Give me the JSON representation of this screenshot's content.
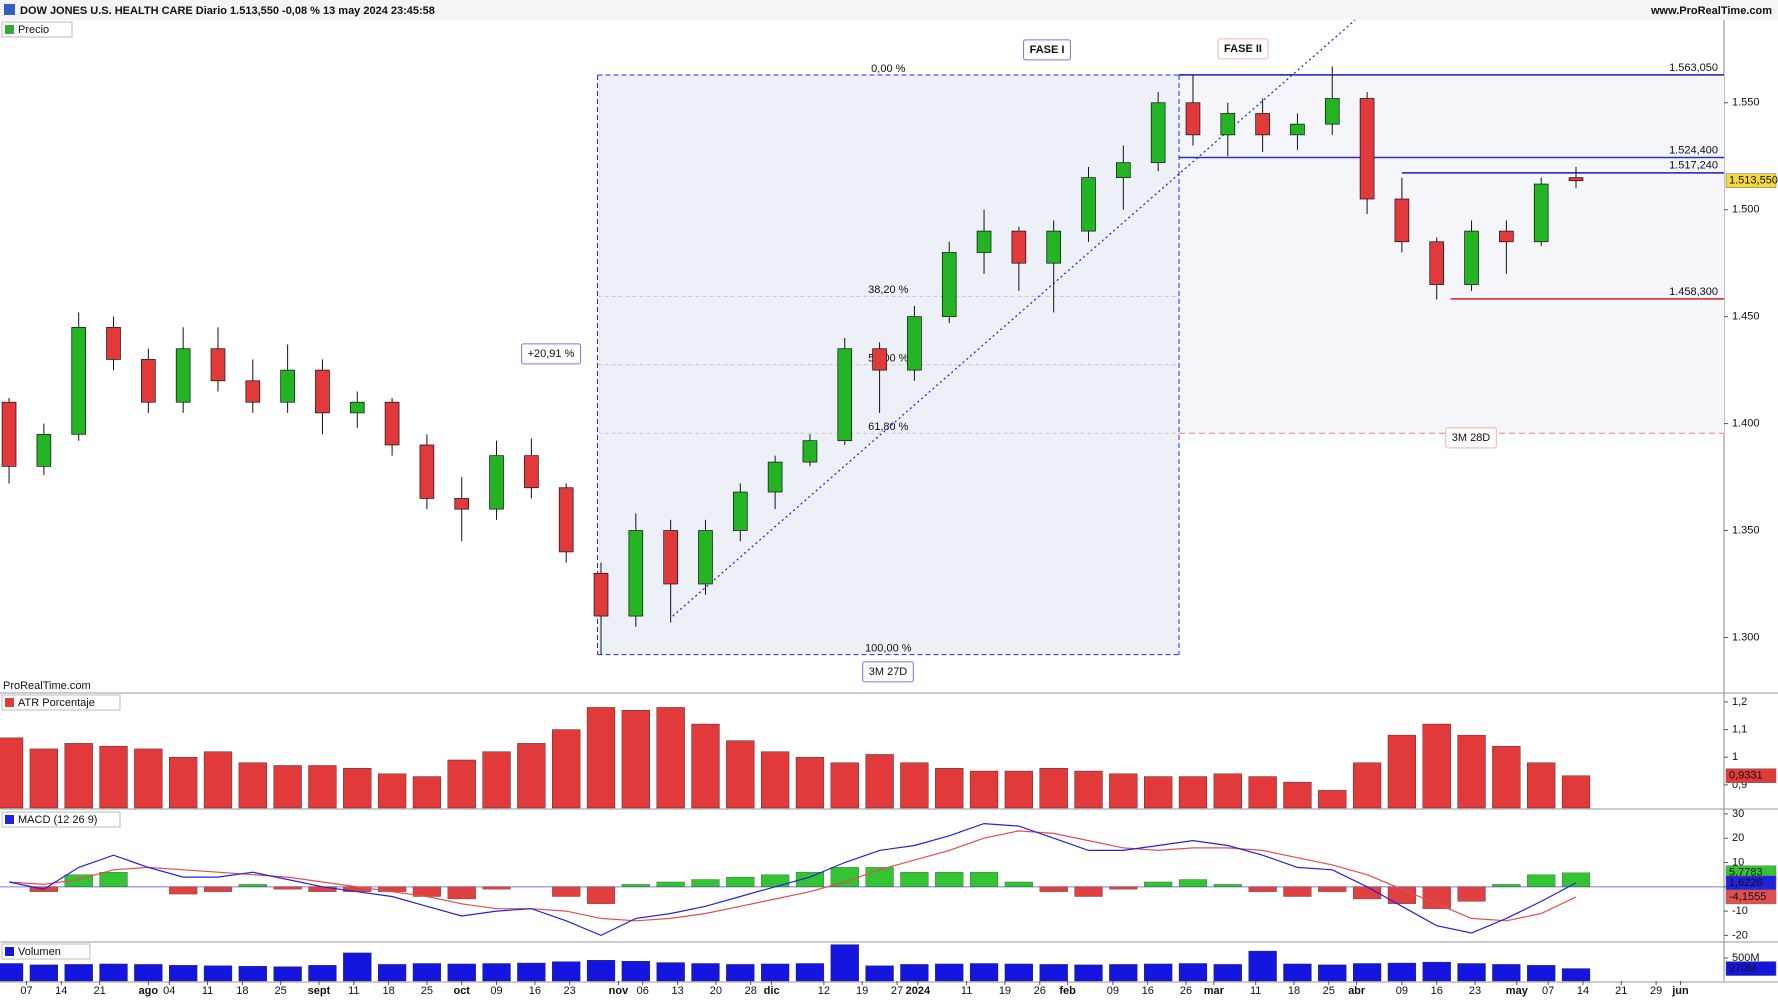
{
  "header": {
    "title": "DOW JONES U.S. HEALTH CARE Diario 1.513,550 -0,08 % 13 may 2024 23:45:58",
    "site": "www.ProRealTime.com"
  },
  "chart_data": [
    {
      "type": "candlestick",
      "title": "Precio",
      "watermark": "ProRealTime.com",
      "x": [
        0,
        1,
        2,
        3,
        4,
        5,
        6,
        7,
        8,
        9,
        10,
        11,
        12,
        13,
        14,
        15,
        16,
        17,
        18,
        19,
        20,
        21,
        22,
        23,
        24,
        25,
        26,
        27,
        28,
        29,
        30,
        31,
        32,
        33,
        34,
        35,
        36,
        37,
        38,
        39,
        40,
        41,
        42,
        43,
        44,
        45
      ],
      "open": [
        1.41,
        1.38,
        1.395,
        1.445,
        1.43,
        1.41,
        1.435,
        1.42,
        1.41,
        1.425,
        1.405,
        1.41,
        1.39,
        1.365,
        1.36,
        1.385,
        1.37,
        1.33,
        1.31,
        1.35,
        1.325,
        1.35,
        1.368,
        1.382,
        1.392,
        1.435,
        1.425,
        1.45,
        1.48,
        1.49,
        1.475,
        1.49,
        1.515,
        1.522,
        1.55,
        1.535,
        1.545,
        1.535,
        1.54,
        1.552,
        1.505,
        1.485,
        1.465,
        1.49,
        1.485,
        1.515
      ],
      "high": [
        1.412,
        1.4,
        1.452,
        1.45,
        1.435,
        1.445,
        1.445,
        1.43,
        1.437,
        1.43,
        1.415,
        1.412,
        1.395,
        1.375,
        1.392,
        1.393,
        1.372,
        1.335,
        1.358,
        1.355,
        1.355,
        1.372,
        1.385,
        1.395,
        1.44,
        1.438,
        1.455,
        1.485,
        1.5,
        1.492,
        1.495,
        1.52,
        1.53,
        1.555,
        1.563,
        1.55,
        1.552,
        1.545,
        1.567,
        1.555,
        1.515,
        1.487,
        1.495,
        1.495,
        1.515,
        1.52
      ],
      "low": [
        1.372,
        1.376,
        1.392,
        1.425,
        1.405,
        1.405,
        1.415,
        1.405,
        1.405,
        1.395,
        1.398,
        1.385,
        1.36,
        1.345,
        1.355,
        1.365,
        1.335,
        1.292,
        1.305,
        1.307,
        1.32,
        1.345,
        1.36,
        1.38,
        1.39,
        1.405,
        1.42,
        1.447,
        1.47,
        1.462,
        1.452,
        1.485,
        1.5,
        1.518,
        1.53,
        1.525,
        1.527,
        1.528,
        1.535,
        1.498,
        1.48,
        1.458,
        1.462,
        1.47,
        1.483,
        1.51
      ],
      "close": [
        1.38,
        1.395,
        1.445,
        1.43,
        1.41,
        1.435,
        1.42,
        1.41,
        1.425,
        1.405,
        1.41,
        1.39,
        1.365,
        1.36,
        1.385,
        1.37,
        1.34,
        1.31,
        1.35,
        1.325,
        1.35,
        1.368,
        1.382,
        1.392,
        1.435,
        1.425,
        1.45,
        1.48,
        1.49,
        1.475,
        1.49,
        1.515,
        1.522,
        1.55,
        1.535,
        1.545,
        1.535,
        1.54,
        1.552,
        1.505,
        1.485,
        1.465,
        1.49,
        1.485,
        1.512,
        1.51355
      ],
      "close_labels": [
        null,
        null,
        null,
        null,
        null,
        null,
        null,
        null,
        null,
        null,
        null,
        null,
        null,
        null,
        null,
        null,
        null,
        null,
        null,
        null,
        null,
        null,
        null,
        null,
        null,
        null,
        null,
        null,
        null,
        null,
        null,
        null,
        null,
        null,
        null,
        null,
        null,
        null,
        null,
        null,
        null,
        null,
        null,
        null,
        null,
        "1.513,550"
      ],
      "up_color": "#22b422",
      "down_color": "#e23a3a",
      "label_color": "#f5d742",
      "xlim": [
        -0.26,
        49.25
      ],
      "ylim": [
        1.2745,
        1.5887
      ],
      "yticks": [
        {
          "value": 1.3,
          "label": "1.300"
        },
        {
          "value": 1.35,
          "label": "1.350"
        },
        {
          "value": 1.4,
          "label": "1.400"
        },
        {
          "value": 1.45,
          "label": "1.450"
        },
        {
          "value": 1.5,
          "label": "1.500"
        },
        {
          "value": 1.55,
          "label": "1.550"
        }
      ],
      "levels": [
        {
          "value": 1.56305,
          "label": "1.563,050",
          "from": 33.6,
          "color": "#1a1ab8"
        },
        {
          "value": 1.5244,
          "label": "1.524,400",
          "from": 33.6,
          "color": "#2a2ad8"
        },
        {
          "value": 1.51724,
          "label": "1.517,240",
          "from": 40.0,
          "color": "#1a1ab8"
        },
        {
          "value": 1.4583,
          "label": "1.458,300",
          "from": 41.4,
          "color": "#e02020"
        }
      ],
      "fibonacci": {
        "from": 16.9,
        "to": 33.6,
        "color": "#2a2ae0",
        "levels": [
          {
            "value": 1.563,
            "label": "0,00 %"
          },
          {
            "value": 1.4595,
            "label": "38,20 %"
          },
          {
            "value": 1.4275,
            "label": "50,00 %"
          },
          {
            "value": 1.3955,
            "label": "61,80 %"
          },
          {
            "value": 1.292,
            "label": "100,00 %"
          }
        ]
      },
      "projection": {
        "value": 1.3955,
        "from": 33.6,
        "color": "#f08070"
      },
      "trendline": {
        "x": [
          19.06,
          38.66
        ],
        "y": [
          1.31,
          1.5887
        ],
        "color": "#2a2ae0"
      },
      "annotations": [
        {
          "text": "FASE I",
          "color": "#1a1ad0"
        },
        {
          "text": "FASE II",
          "color": "#f08070"
        },
        {
          "text": "+20,91 %",
          "color": "#1a1ad0"
        },
        {
          "text": "3M 27D",
          "color": "#1a1ad0"
        },
        {
          "text": "3M 28D",
          "color": "#f08070"
        }
      ]
    },
    {
      "type": "bar",
      "title": "ATR Porcentaje",
      "color": "#e23a3a",
      "values": [
        1.07,
        1.03,
        1.05,
        1.04,
        1.03,
        1.0,
        1.02,
        0.98,
        0.97,
        0.97,
        0.96,
        0.94,
        0.93,
        0.99,
        1.02,
        1.05,
        1.1,
        1.18,
        1.17,
        1.18,
        1.12,
        1.06,
        1.02,
        1.0,
        0.98,
        1.01,
        0.98,
        0.96,
        0.95,
        0.95,
        0.96,
        0.95,
        0.94,
        0.93,
        0.93,
        0.94,
        0.93,
        0.91,
        0.88,
        0.98,
        1.08,
        1.12,
        1.08,
        1.04,
        0.98,
        0.9331
      ],
      "value_labels": [
        null,
        null,
        null,
        null,
        null,
        null,
        null,
        null,
        null,
        null,
        null,
        null,
        null,
        null,
        null,
        null,
        null,
        null,
        null,
        null,
        null,
        null,
        null,
        null,
        null,
        null,
        null,
        null,
        null,
        null,
        null,
        null,
        null,
        null,
        null,
        null,
        null,
        null,
        null,
        null,
        null,
        null,
        null,
        null,
        null,
        "0,9331"
      ],
      "ylim": [
        0.8163,
        1.2286
      ],
      "yticks": [
        {
          "value": 1.2,
          "label": "1,2"
        },
        {
          "value": 1.1,
          "label": "1,1"
        },
        1,
        {
          "value": 0.9,
          "label": "0,9"
        }
      ]
    },
    {
      "type": "macd",
      "title": "MACD (12 26 9)",
      "macd": {
        "color": "#2222dd",
        "values": [
          2,
          -1,
          8,
          13,
          8,
          4,
          4,
          6,
          3,
          0,
          -2,
          -4,
          -8,
          -12,
          -10,
          -9,
          -14,
          -20,
          -13,
          -11,
          -8,
          -4,
          0,
          4,
          10,
          15,
          17,
          21,
          26,
          25,
          20,
          15,
          15,
          17,
          19,
          17,
          13,
          8,
          7,
          0,
          -8,
          -16,
          -19,
          -13,
          -6,
          1.6228
        ],
        "value_labels": [
          null,
          null,
          null,
          null,
          null,
          null,
          null,
          null,
          null,
          null,
          null,
          null,
          null,
          null,
          null,
          null,
          null,
          null,
          null,
          null,
          null,
          null,
          null,
          null,
          null,
          null,
          null,
          null,
          null,
          null,
          null,
          null,
          null,
          null,
          null,
          null,
          null,
          null,
          null,
          null,
          null,
          null,
          null,
          null,
          null,
          "1,6228"
        ]
      },
      "signal": {
        "color": "#e05050",
        "values": [
          2,
          1,
          3,
          7,
          8,
          7,
          6,
          5,
          4,
          2,
          0,
          -2,
          -4,
          -7,
          -9,
          -9,
          -10,
          -13,
          -14,
          -13,
          -11,
          -8,
          -5,
          -2,
          2,
          7,
          11,
          15,
          20,
          23,
          22,
          19,
          16,
          15,
          16,
          16,
          15,
          12,
          9,
          5,
          -1,
          -7,
          -13,
          -14,
          -11,
          -4.1555
        ],
        "value_labels": [
          null,
          null,
          null,
          null,
          null,
          null,
          null,
          null,
          null,
          null,
          null,
          null,
          null,
          null,
          null,
          null,
          null,
          null,
          null,
          null,
          null,
          null,
          null,
          null,
          null,
          null,
          null,
          null,
          null,
          null,
          null,
          null,
          null,
          null,
          null,
          null,
          null,
          null,
          null,
          null,
          null,
          null,
          null,
          null,
          null,
          "-4,1555"
        ]
      },
      "histogram": {
        "up_color": "#33c433",
        "down_color": "#e04040",
        "values": [
          0,
          -2,
          5,
          6,
          0,
          -3,
          -2,
          1,
          -1,
          -2,
          -2,
          -2,
          -4,
          -5,
          -1,
          0,
          -4,
          -7,
          1,
          2,
          3,
          4,
          5,
          6,
          8,
          8,
          6,
          6,
          6,
          2,
          -2,
          -4,
          -1,
          2,
          3,
          1,
          -2,
          -4,
          -2,
          -5,
          -7,
          -9,
          -6,
          1,
          5,
          5.7783
        ],
        "value_labels": [
          null,
          null,
          null,
          null,
          null,
          null,
          null,
          null,
          null,
          null,
          null,
          null,
          null,
          null,
          null,
          null,
          null,
          null,
          null,
          null,
          null,
          null,
          null,
          null,
          null,
          null,
          null,
          null,
          null,
          null,
          null,
          null,
          null,
          null,
          null,
          null,
          null,
          null,
          null,
          null,
          null,
          null,
          null,
          null,
          null,
          "5,7783"
        ]
      },
      "ylim": [
        -22.3,
        31.2
      ],
      "yticks": [
        30,
        20,
        10,
        0,
        -10,
        -20
      ]
    },
    {
      "type": "bar",
      "title": "Volumen",
      "color": "#1515e0",
      "values": [
        380000000,
        350000000,
        360000000,
        370000000,
        360000000,
        340000000,
        330000000,
        320000000,
        310000000,
        340000000,
        610000000,
        360000000,
        380000000,
        370000000,
        380000000,
        390000000,
        420000000,
        450000000,
        430000000,
        400000000,
        380000000,
        360000000,
        370000000,
        380000000,
        790000000,
        330000000,
        360000000,
        370000000,
        380000000,
        370000000,
        360000000,
        350000000,
        360000000,
        370000000,
        380000000,
        360000000,
        650000000,
        370000000,
        350000000,
        380000000,
        390000000,
        410000000,
        380000000,
        360000000,
        340000000,
        270000000
      ],
      "value_labels": [
        null,
        null,
        null,
        null,
        null,
        null,
        null,
        null,
        null,
        null,
        null,
        null,
        null,
        null,
        null,
        null,
        null,
        null,
        null,
        null,
        null,
        null,
        null,
        null,
        null,
        null,
        null,
        null,
        null,
        null,
        null,
        null,
        null,
        null,
        null,
        null,
        null,
        null,
        null,
        null,
        null,
        null,
        null,
        null,
        null,
        "270M"
      ],
      "ylim": [
        0,
        825000000
      ],
      "yticks": [
        {
          "value": 500000000,
          "label": "500M"
        }
      ],
      "xticks": [
        {
          "value": 0.5,
          "label": "07"
        },
        {
          "value": 1.5,
          "label": "14"
        },
        {
          "value": 2.6,
          "label": "21"
        },
        {
          "value": 4.6,
          "label": "04"
        },
        {
          "value": 5.7,
          "label": "11"
        },
        {
          "value": 6.7,
          "label": "18"
        },
        {
          "value": 7.8,
          "label": "25"
        },
        {
          "value": 9.9,
          "label": "11"
        },
        {
          "value": 10.9,
          "label": "18"
        },
        {
          "value": 12.0,
          "label": "25"
        },
        {
          "value": 14.0,
          "label": "09"
        },
        {
          "value": 15.1,
          "label": "16"
        },
        {
          "value": 16.1,
          "label": "23"
        },
        {
          "value": 18.2,
          "label": "06"
        },
        {
          "value": 19.2,
          "label": "13"
        },
        {
          "value": 20.3,
          "label": "20"
        },
        {
          "value": 21.3,
          "label": "28"
        },
        {
          "value": 23.4,
          "label": "12"
        },
        {
          "value": 24.5,
          "label": "19"
        },
        {
          "value": 25.5,
          "label": "27"
        },
        {
          "value": 27.5,
          "label": "11"
        },
        {
          "value": 28.6,
          "label": "19"
        },
        {
          "value": 29.6,
          "label": "26"
        },
        {
          "value": 31.7,
          "label": "09"
        },
        {
          "value": 32.7,
          "label": "16"
        },
        {
          "value": 33.8,
          "label": "26"
        },
        {
          "value": 35.8,
          "label": "11"
        },
        {
          "value": 36.9,
          "label": "18"
        },
        {
          "value": 37.9,
          "label": "25"
        },
        {
          "value": 40.0,
          "label": "09"
        },
        {
          "value": 41.0,
          "label": "16"
        },
        {
          "value": 42.1,
          "label": "23"
        },
        {
          "value": 44.2,
          "label": "07"
        },
        {
          "value": 45.2,
          "label": "14"
        },
        {
          "value": 46.3,
          "label": "21"
        },
        {
          "value": 47.3,
          "label": "29"
        }
      ],
      "xticks_major": [
        {
          "value": 4.0,
          "label": "ago"
        },
        {
          "value": 8.9,
          "label": "sept"
        },
        {
          "value": 13.0,
          "label": "oct"
        },
        {
          "value": 17.5,
          "label": "nov"
        },
        {
          "value": 21.9,
          "label": "dic"
        },
        {
          "value": 26.1,
          "label": "2024"
        },
        {
          "value": 30.4,
          "label": "feb"
        },
        {
          "value": 34.6,
          "label": "mar"
        },
        {
          "value": 38.7,
          "label": "abr"
        },
        {
          "value": 43.3,
          "label": "may"
        },
        {
          "value": 48.0,
          "label": "jun"
        }
      ]
    }
  ]
}
